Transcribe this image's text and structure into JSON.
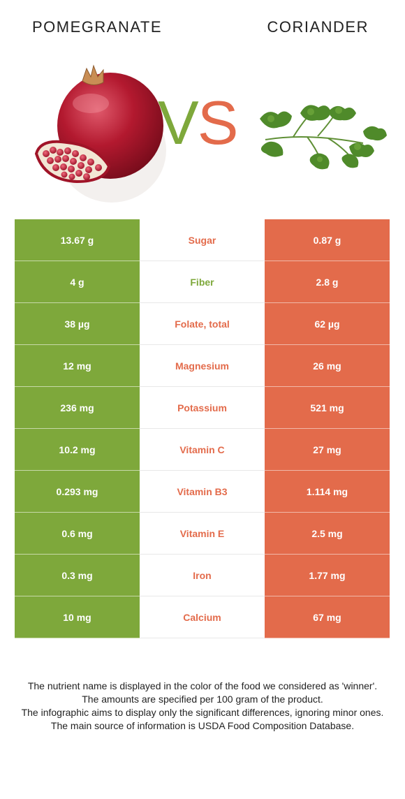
{
  "header": {
    "left_title": "POMEGRANATE",
    "right_title": "CORIANDER",
    "vs_v": "V",
    "vs_s": "S"
  },
  "colors": {
    "left_winner": "#7ea83b",
    "right_winner": "#e36b4b"
  },
  "rows": [
    {
      "left": "13.67 g",
      "name": "Sugar",
      "right": "0.87 g",
      "winner": "right"
    },
    {
      "left": "4 g",
      "name": "Fiber",
      "right": "2.8 g",
      "winner": "left"
    },
    {
      "left": "38 µg",
      "name": "Folate, total",
      "right": "62 µg",
      "winner": "right"
    },
    {
      "left": "12 mg",
      "name": "Magnesium",
      "right": "26 mg",
      "winner": "right"
    },
    {
      "left": "236 mg",
      "name": "Potassium",
      "right": "521 mg",
      "winner": "right"
    },
    {
      "left": "10.2 mg",
      "name": "Vitamin C",
      "right": "27 mg",
      "winner": "right"
    },
    {
      "left": "0.293 mg",
      "name": "Vitamin B3",
      "right": "1.114 mg",
      "winner": "right"
    },
    {
      "left": "0.6 mg",
      "name": "Vitamin E",
      "right": "2.5 mg",
      "winner": "right"
    },
    {
      "left": "0.3 mg",
      "name": "Iron",
      "right": "1.77 mg",
      "winner": "right"
    },
    {
      "left": "10 mg",
      "name": "Calcium",
      "right": "67 mg",
      "winner": "right"
    }
  ],
  "footer": {
    "line1": "The nutrient name is displayed in the color of the food we considered as 'winner'.",
    "line2": "The amounts are specified per 100 gram of the product.",
    "line3": "The infographic aims to display only the significant differences, ignoring minor ones.",
    "line4": "The main source of information is USDA Food Composition Database."
  }
}
